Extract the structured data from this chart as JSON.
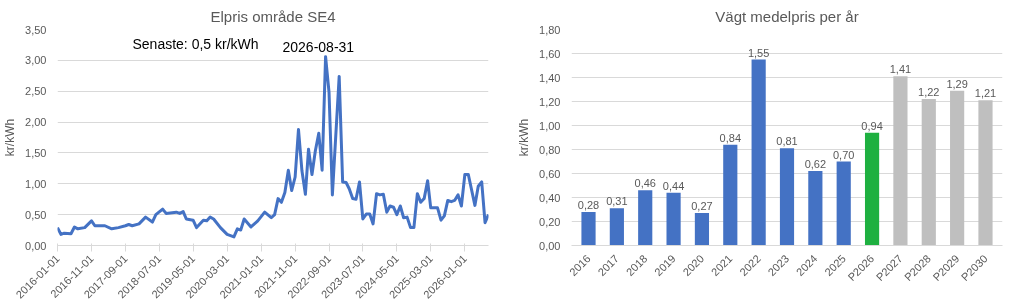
{
  "chart_data": [
    {
      "type": "line",
      "title": "Elpris område SE4",
      "ylabel": "kr/kWh",
      "annotations": [
        "Senaste: 0,5 kr/kWh",
        "2026-08-31"
      ],
      "x": [
        "2016-01",
        "2016-02",
        "2016-03",
        "2016-05",
        "2016-06",
        "2016-07",
        "2016-09",
        "2016-11",
        "2016-12",
        "2017-03",
        "2017-05",
        "2017-07",
        "2017-09",
        "2017-10",
        "2017-11",
        "2018-01",
        "2018-03",
        "2018-05",
        "2018-06",
        "2018-08",
        "2018-09",
        "2018-12",
        "2019-01",
        "2019-02",
        "2019-03",
        "2019-05",
        "2019-06",
        "2019-08",
        "2019-09",
        "2019-10",
        "2019-11",
        "2020-01",
        "2020-03",
        "2020-05",
        "2020-06",
        "2020-07",
        "2020-08",
        "2020-10",
        "2020-12",
        "2021-02",
        "2021-04",
        "2021-05",
        "2021-06",
        "2021-07",
        "2021-08",
        "2021-09",
        "2021-10",
        "2021-11",
        "2021-12",
        "2022-01",
        "2022-02",
        "2022-03",
        "2022-04",
        "2022-05",
        "2022-06",
        "2022-07",
        "2022-08",
        "2022-09",
        "2022-10",
        "2022-12",
        "2023-01",
        "2023-02",
        "2023-03",
        "2023-04",
        "2023-05",
        "2023-06",
        "2023-07",
        "2023-08",
        "2023-09",
        "2023-10",
        "2023-11",
        "2023-12",
        "2024-01",
        "2024-02",
        "2024-03",
        "2024-04",
        "2024-05",
        "2024-06",
        "2024-07",
        "2024-08",
        "2024-09",
        "2024-10",
        "2024-11",
        "2024-12",
        "2025-01",
        "2025-02",
        "2025-03",
        "2025-04",
        "2025-05",
        "2025-06",
        "2025-07",
        "2025-08",
        "2025-09",
        "2025-10",
        "2025-11",
        "2025-12",
        "2026-01",
        "2026-02",
        "2026-04",
        "2026-05",
        "2026-06",
        "2026-07",
        "2026-08"
      ],
      "series": [
        {
          "color": "#4472c4",
          "values": [
            0.29,
            0.18,
            0.2,
            0.19,
            0.3,
            0.27,
            0.29,
            0.4,
            0.32,
            0.32,
            0.27,
            0.29,
            0.32,
            0.34,
            0.32,
            0.35,
            0.46,
            0.38,
            0.5,
            0.59,
            0.52,
            0.54,
            0.52,
            0.55,
            0.43,
            0.41,
            0.29,
            0.41,
            0.4,
            0.46,
            0.43,
            0.29,
            0.18,
            0.14,
            0.27,
            0.25,
            0.43,
            0.3,
            0.4,
            0.54,
            0.45,
            0.5,
            0.76,
            0.7,
            0.86,
            1.22,
            0.89,
            1.11,
            1.88,
            1.21,
            0.83,
            1.56,
            1.15,
            1.53,
            1.82,
            1.22,
            3.06,
            2.48,
            0.82,
            2.74,
            1.03,
            1.02,
            0.92,
            0.76,
            0.75,
            1.03,
            0.43,
            0.51,
            0.51,
            0.35,
            0.84,
            0.82,
            0.83,
            0.54,
            0.64,
            0.62,
            0.5,
            0.64,
            0.45,
            0.46,
            0.29,
            0.29,
            0.84,
            0.7,
            0.76,
            1.05,
            0.61,
            0.61,
            0.61,
            0.41,
            0.48,
            0.73,
            0.71,
            0.73,
            0.82,
            0.64,
            1.15,
            1.15,
            0.65,
            0.96,
            1.03,
            0.37,
            0.5
          ]
        }
      ],
      "xlim": [
        "2016-01",
        "2026-08"
      ],
      "xticks": [
        "2016-01-01",
        "2016-11-01",
        "2017-09-01",
        "2018-07-01",
        "2019-05-01",
        "2020-03-01",
        "2021-01-01",
        "2021-11-01",
        "2022-09-01",
        "2023-07-01",
        "2024-05-01",
        "2025-03-01",
        "2026-01-01"
      ],
      "ylim": [
        0,
        3.5
      ],
      "yticks": [
        {
          "value": 0,
          "label": "0,00"
        },
        {
          "value": 0.5,
          "label": "0,50"
        },
        {
          "value": 1,
          "label": "1,00"
        },
        {
          "value": 1.5,
          "label": "1,50"
        },
        {
          "value": 2,
          "label": "2,00"
        },
        {
          "value": 2.5,
          "label": "2,50"
        },
        {
          "value": 3,
          "label": "3,00"
        },
        {
          "value": 3.5,
          "label": "3,50"
        }
      ],
      "grid": "y",
      "line_style": "solid",
      "marker": "none"
    },
    {
      "type": "bar",
      "title": "Vägt medelpris per år",
      "ylabel": "kr/kWh",
      "categories": [
        "2016",
        "2017",
        "2018",
        "2019",
        "2020",
        "2021",
        "2022",
        "2023",
        "2024",
        "2025",
        "P2026",
        "P2027",
        "P2028",
        "P2029",
        "P2030"
      ],
      "values": [
        0.28,
        0.31,
        0.46,
        0.44,
        0.27,
        0.84,
        1.55,
        0.81,
        0.62,
        0.7,
        0.94,
        1.41,
        1.22,
        1.29,
        1.21
      ],
      "value_labels": [
        "0,28",
        "0,31",
        "0,46",
        "0,44",
        "0,27",
        "0,84",
        "1,55",
        "0,81",
        "0,62",
        "0,70",
        "0,94",
        "1,41",
        "1,22",
        "1,29",
        "1,21"
      ],
      "colors": [
        "#4472c4",
        "#4472c4",
        "#4472c4",
        "#4472c4",
        "#4472c4",
        "#4472c4",
        "#4472c4",
        "#4472c4",
        "#4472c4",
        "#4472c4",
        "#1eb040",
        "#bfbfbf",
        "#bfbfbf",
        "#bfbfbf",
        "#bfbfbf"
      ],
      "ylim": [
        0,
        1.8
      ],
      "yticks": [
        {
          "value": 0,
          "label": "0,00"
        },
        {
          "value": 0.2,
          "label": "0,20"
        },
        {
          "value": 0.4,
          "label": "0,40"
        },
        {
          "value": 0.6,
          "label": "0,60"
        },
        {
          "value": 0.8,
          "label": "0,80"
        },
        {
          "value": 1,
          "label": "1,00"
        },
        {
          "value": 1.2,
          "label": "1,20"
        },
        {
          "value": 1.4,
          "label": "1,40"
        },
        {
          "value": 1.6,
          "label": "1,60"
        },
        {
          "value": 1.8,
          "label": "1,80"
        }
      ],
      "grid": "y"
    }
  ]
}
